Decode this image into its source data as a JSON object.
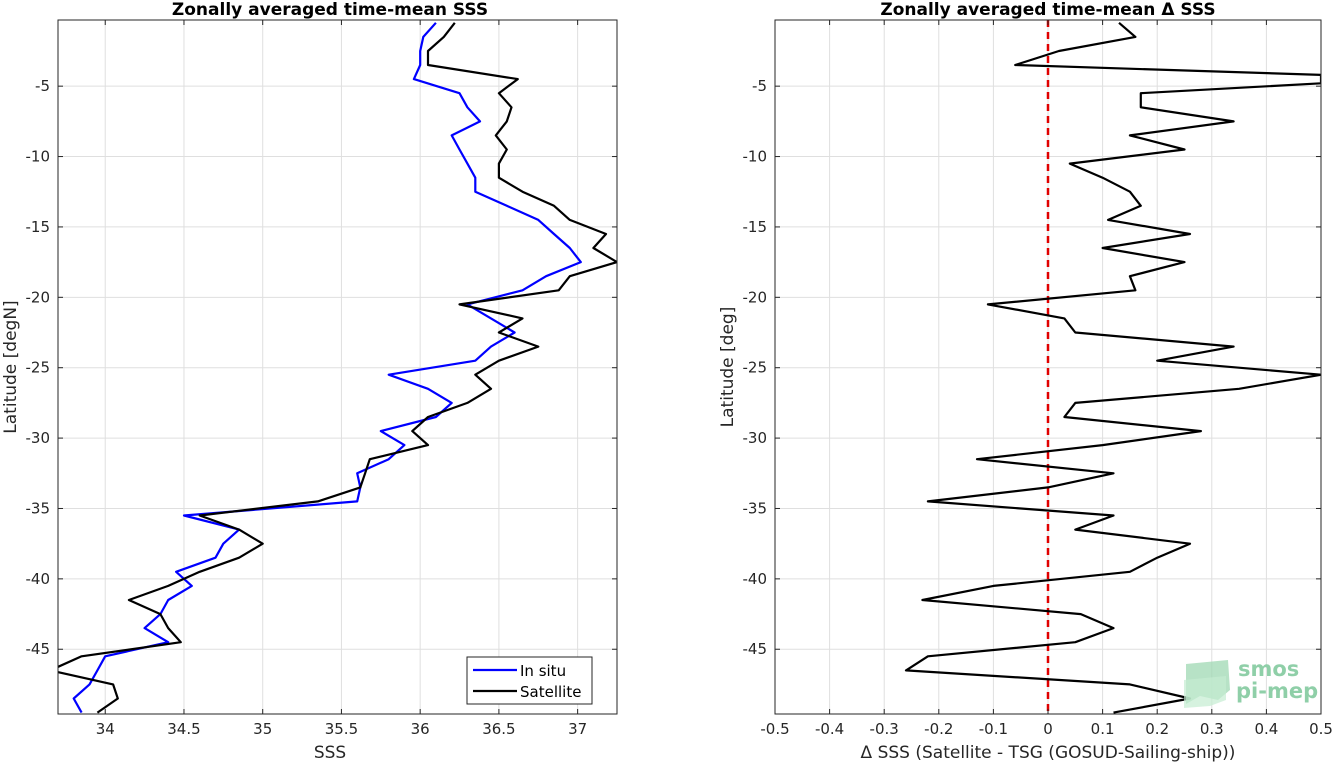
{
  "chart_data": [
    {
      "type": "line",
      "title": "Zonally averaged time-mean SSS",
      "xlabel": "SSS",
      "ylabel": "Latitude [degN]",
      "xlim": [
        33.7,
        37.25
      ],
      "ylim": [
        -49.6,
        -0.3
      ],
      "xticks": [
        34,
        34.5,
        35,
        35.5,
        36,
        36.5,
        37
      ],
      "yticks": [
        -5,
        -10,
        -15,
        -20,
        -25,
        -30,
        -35,
        -40,
        -45
      ],
      "grid": true,
      "legend": "bottom-right",
      "series": [
        {
          "name": "In situ",
          "color": "#0000ff",
          "points": [
            [
              36.1,
              -0.5
            ],
            [
              36.02,
              -1.5
            ],
            [
              36.0,
              -2.5
            ],
            [
              36.0,
              -3.5
            ],
            [
              35.96,
              -4.5
            ],
            [
              36.25,
              -5.5
            ],
            [
              36.3,
              -6.5
            ],
            [
              36.38,
              -7.5
            ],
            [
              36.2,
              -8.5
            ],
            [
              36.25,
              -9.5
            ],
            [
              36.3,
              -10.5
            ],
            [
              36.35,
              -11.5
            ],
            [
              36.35,
              -12.5
            ],
            [
              36.55,
              -13.5
            ],
            [
              36.75,
              -14.5
            ],
            [
              36.85,
              -15.5
            ],
            [
              36.95,
              -16.5
            ],
            [
              37.02,
              -17.5
            ],
            [
              36.8,
              -18.5
            ],
            [
              36.65,
              -19.5
            ],
            [
              36.3,
              -20.5
            ],
            [
              36.45,
              -21.5
            ],
            [
              36.6,
              -22.5
            ],
            [
              36.45,
              -23.5
            ],
            [
              36.35,
              -24.5
            ],
            [
              35.8,
              -25.5
            ],
            [
              36.05,
              -26.5
            ],
            [
              36.2,
              -27.5
            ],
            [
              36.1,
              -28.5
            ],
            [
              35.75,
              -29.5
            ],
            [
              35.9,
              -30.5
            ],
            [
              35.8,
              -31.5
            ],
            [
              35.6,
              -32.5
            ],
            [
              35.62,
              -33.5
            ],
            [
              35.6,
              -34.5
            ],
            [
              34.5,
              -35.5
            ],
            [
              34.85,
              -36.5
            ],
            [
              34.75,
              -37.5
            ],
            [
              34.7,
              -38.5
            ],
            [
              34.45,
              -39.5
            ],
            [
              34.55,
              -40.5
            ],
            [
              34.4,
              -41.5
            ],
            [
              34.35,
              -42.5
            ],
            [
              34.25,
              -43.5
            ],
            [
              34.4,
              -44.5
            ],
            [
              34.0,
              -45.5
            ],
            [
              33.95,
              -46.5
            ],
            [
              33.9,
              -47.5
            ],
            [
              33.8,
              -48.5
            ],
            [
              33.85,
              -49.5
            ]
          ]
        },
        {
          "name": "Satellite",
          "color": "#000000",
          "points": [
            [
              36.22,
              -0.5
            ],
            [
              36.15,
              -1.5
            ],
            [
              36.05,
              -2.5
            ],
            [
              36.05,
              -3.5
            ],
            [
              36.62,
              -4.5
            ],
            [
              36.5,
              -5.5
            ],
            [
              36.58,
              -6.5
            ],
            [
              36.55,
              -7.5
            ],
            [
              36.48,
              -8.5
            ],
            [
              36.55,
              -9.5
            ],
            [
              36.5,
              -10.5
            ],
            [
              36.5,
              -11.5
            ],
            [
              36.65,
              -12.5
            ],
            [
              36.85,
              -13.5
            ],
            [
              36.95,
              -14.5
            ],
            [
              37.18,
              -15.5
            ],
            [
              37.1,
              -16.5
            ],
            [
              37.25,
              -17.5
            ],
            [
              36.95,
              -18.5
            ],
            [
              36.88,
              -19.5
            ],
            [
              36.25,
              -20.5
            ],
            [
              36.65,
              -21.5
            ],
            [
              36.5,
              -22.5
            ],
            [
              36.75,
              -23.5
            ],
            [
              36.5,
              -24.5
            ],
            [
              36.35,
              -25.5
            ],
            [
              36.45,
              -26.5
            ],
            [
              36.3,
              -27.5
            ],
            [
              36.05,
              -28.5
            ],
            [
              35.95,
              -29.5
            ],
            [
              36.05,
              -30.5
            ],
            [
              35.68,
              -31.5
            ],
            [
              35.65,
              -32.5
            ],
            [
              35.62,
              -33.5
            ],
            [
              35.35,
              -34.5
            ],
            [
              34.6,
              -35.5
            ],
            [
              34.85,
              -36.5
            ],
            [
              35.0,
              -37.5
            ],
            [
              34.85,
              -38.5
            ],
            [
              34.6,
              -39.5
            ],
            [
              34.4,
              -40.5
            ],
            [
              34.15,
              -41.5
            ],
            [
              34.35,
              -42.5
            ],
            [
              34.4,
              -43.5
            ],
            [
              34.48,
              -44.5
            ],
            [
              33.85,
              -45.5
            ],
            [
              33.65,
              -46.5
            ],
            [
              34.05,
              -47.5
            ],
            [
              34.08,
              -48.5
            ],
            [
              33.95,
              -49.5
            ]
          ]
        }
      ]
    },
    {
      "type": "line",
      "title": "Zonally averaged time-mean Δ SSS",
      "xlabel": "Δ SSS (Satellite - TSG (GOSUD-Sailing-ship))",
      "ylabel": "Latitude [deg]",
      "xlim": [
        -0.5,
        0.5
      ],
      "ylim": [
        -49.6,
        -0.3
      ],
      "xticks": [
        -0.5,
        -0.4,
        -0.3,
        -0.2,
        -0.1,
        0,
        0.1,
        0.2,
        0.3,
        0.4,
        0.5
      ],
      "yticks": [
        -5,
        -10,
        -15,
        -20,
        -25,
        -30,
        -35,
        -40,
        -45
      ],
      "grid": true,
      "reference_line": {
        "x": 0,
        "color": "#e00000",
        "style": "dashed"
      },
      "series": [
        {
          "color": "#000000",
          "points": [
            [
              0.13,
              -0.5
            ],
            [
              0.16,
              -1.5
            ],
            [
              0.02,
              -2.5
            ],
            [
              -0.06,
              -3.5
            ],
            [
              0.5,
              -4.2
            ],
            [
              0.5,
              -4.8
            ],
            [
              0.17,
              -5.5
            ],
            [
              0.17,
              -6.5
            ],
            [
              0.34,
              -7.5
            ],
            [
              0.15,
              -8.5
            ],
            [
              0.25,
              -9.5
            ],
            [
              0.04,
              -10.5
            ],
            [
              0.1,
              -11.5
            ],
            [
              0.15,
              -12.5
            ],
            [
              0.17,
              -13.5
            ],
            [
              0.11,
              -14.5
            ],
            [
              0.26,
              -15.5
            ],
            [
              0.1,
              -16.5
            ],
            [
              0.25,
              -17.5
            ],
            [
              0.15,
              -18.5
            ],
            [
              0.16,
              -19.5
            ],
            [
              -0.11,
              -20.5
            ],
            [
              0.03,
              -21.5
            ],
            [
              0.05,
              -22.5
            ],
            [
              0.34,
              -23.5
            ],
            [
              0.2,
              -24.5
            ],
            [
              0.5,
              -25.5
            ],
            [
              0.35,
              -26.5
            ],
            [
              0.05,
              -27.5
            ],
            [
              0.03,
              -28.5
            ],
            [
              0.28,
              -29.5
            ],
            [
              0.1,
              -30.5
            ],
            [
              -0.13,
              -31.5
            ],
            [
              0.12,
              -32.5
            ],
            [
              0.0,
              -33.5
            ],
            [
              -0.22,
              -34.5
            ],
            [
              0.12,
              -35.5
            ],
            [
              0.05,
              -36.5
            ],
            [
              0.26,
              -37.5
            ],
            [
              0.2,
              -38.5
            ],
            [
              0.15,
              -39.5
            ],
            [
              -0.1,
              -40.5
            ],
            [
              -0.23,
              -41.5
            ],
            [
              0.06,
              -42.5
            ],
            [
              0.12,
              -43.5
            ],
            [
              0.05,
              -44.5
            ],
            [
              -0.22,
              -45.5
            ],
            [
              -0.26,
              -46.5
            ],
            [
              0.15,
              -47.5
            ],
            [
              0.26,
              -48.5
            ],
            [
              0.12,
              -49.5
            ]
          ]
        }
      ]
    }
  ],
  "logo": {
    "line1": "smos",
    "line2": "pi-mep",
    "color": "#8fcfa8"
  }
}
